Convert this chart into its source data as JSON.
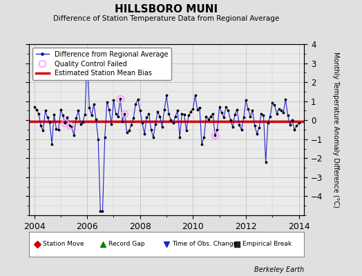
{
  "title": "HILLSBORO MUNI",
  "subtitle": "Difference of Station Temperature Data from Regional Average",
  "ylabel": "Monthly Temperature Anomaly Difference (°C)",
  "xlim": [
    2003.8,
    2014.2
  ],
  "ylim": [
    -5,
    4
  ],
  "yticks": [
    -4,
    -3,
    -2,
    -1,
    0,
    1,
    2,
    3,
    4
  ],
  "xticks": [
    2004,
    2006,
    2008,
    2010,
    2012,
    2014
  ],
  "bias_value": -0.05,
  "bg_color": "#e0e0e0",
  "plot_bg_color": "#ebebeb",
  "line_color": "#2222cc",
  "bias_color": "#dd0000",
  "qc_color": "#ff99ff",
  "time_series": [
    [
      2004.0,
      0.7
    ],
    [
      2004.083,
      0.55
    ],
    [
      2004.167,
      0.35
    ],
    [
      2004.25,
      -0.3
    ],
    [
      2004.333,
      -0.55
    ],
    [
      2004.417,
      0.5
    ],
    [
      2004.5,
      0.15
    ],
    [
      2004.583,
      -0.1
    ],
    [
      2004.667,
      -1.25
    ],
    [
      2004.75,
      0.3
    ],
    [
      2004.833,
      -0.45
    ],
    [
      2004.917,
      -0.5
    ],
    [
      2005.0,
      0.55
    ],
    [
      2005.083,
      0.25
    ],
    [
      2005.167,
      -0.15
    ],
    [
      2005.25,
      0.15
    ],
    [
      2005.333,
      -0.3
    ],
    [
      2005.417,
      -0.35
    ],
    [
      2005.5,
      -0.8
    ],
    [
      2005.583,
      0.1
    ],
    [
      2005.667,
      0.5
    ],
    [
      2005.75,
      -0.2
    ],
    [
      2005.833,
      -0.1
    ],
    [
      2005.917,
      0.3
    ],
    [
      2006.0,
      3.5
    ],
    [
      2006.083,
      0.65
    ],
    [
      2006.167,
      0.25
    ],
    [
      2006.25,
      0.85
    ],
    [
      2006.333,
      0.05
    ],
    [
      2006.417,
      -1.0
    ],
    [
      2006.5,
      -4.8
    ],
    [
      2006.583,
      -4.8
    ],
    [
      2006.667,
      -0.9
    ],
    [
      2006.75,
      0.95
    ],
    [
      2006.833,
      0.55
    ],
    [
      2006.917,
      -0.2
    ],
    [
      2007.0,
      1.05
    ],
    [
      2007.083,
      0.35
    ],
    [
      2007.167,
      0.2
    ],
    [
      2007.25,
      1.15
    ],
    [
      2007.333,
      -0.05
    ],
    [
      2007.417,
      0.35
    ],
    [
      2007.5,
      -0.65
    ],
    [
      2007.583,
      -0.55
    ],
    [
      2007.667,
      -0.25
    ],
    [
      2007.75,
      0.1
    ],
    [
      2007.833,
      0.85
    ],
    [
      2007.917,
      1.1
    ],
    [
      2008.0,
      0.5
    ],
    [
      2008.083,
      -0.15
    ],
    [
      2008.167,
      -0.7
    ],
    [
      2008.25,
      0.15
    ],
    [
      2008.333,
      0.35
    ],
    [
      2008.417,
      -0.5
    ],
    [
      2008.5,
      -0.9
    ],
    [
      2008.583,
      -0.2
    ],
    [
      2008.667,
      0.45
    ],
    [
      2008.75,
      0.2
    ],
    [
      2008.833,
      -0.35
    ],
    [
      2008.917,
      0.55
    ],
    [
      2009.0,
      1.3
    ],
    [
      2009.083,
      0.35
    ],
    [
      2009.167,
      0.0
    ],
    [
      2009.25,
      -0.15
    ],
    [
      2009.333,
      0.2
    ],
    [
      2009.417,
      0.5
    ],
    [
      2009.5,
      -0.9
    ],
    [
      2009.583,
      0.35
    ],
    [
      2009.667,
      0.3
    ],
    [
      2009.75,
      -0.55
    ],
    [
      2009.833,
      0.25
    ],
    [
      2009.917,
      0.45
    ],
    [
      2010.0,
      0.6
    ],
    [
      2010.083,
      1.3
    ],
    [
      2010.167,
      0.55
    ],
    [
      2010.25,
      0.65
    ],
    [
      2010.333,
      -1.25
    ],
    [
      2010.417,
      -0.9
    ],
    [
      2010.5,
      0.2
    ],
    [
      2010.583,
      0.05
    ],
    [
      2010.667,
      0.2
    ],
    [
      2010.75,
      0.35
    ],
    [
      2010.833,
      -0.8
    ],
    [
      2010.917,
      -0.5
    ],
    [
      2011.0,
      0.7
    ],
    [
      2011.083,
      0.4
    ],
    [
      2011.167,
      0.15
    ],
    [
      2011.25,
      0.7
    ],
    [
      2011.333,
      0.5
    ],
    [
      2011.417,
      0.0
    ],
    [
      2011.5,
      -0.35
    ],
    [
      2011.583,
      0.3
    ],
    [
      2011.667,
      0.55
    ],
    [
      2011.75,
      -0.25
    ],
    [
      2011.833,
      -0.5
    ],
    [
      2011.917,
      0.15
    ],
    [
      2012.0,
      1.05
    ],
    [
      2012.083,
      0.6
    ],
    [
      2012.167,
      0.2
    ],
    [
      2012.25,
      0.5
    ],
    [
      2012.333,
      -0.3
    ],
    [
      2012.417,
      -0.7
    ],
    [
      2012.5,
      -0.4
    ],
    [
      2012.583,
      0.35
    ],
    [
      2012.667,
      0.25
    ],
    [
      2012.75,
      -2.2
    ],
    [
      2012.833,
      -0.15
    ],
    [
      2012.917,
      0.2
    ],
    [
      2013.0,
      0.9
    ],
    [
      2013.083,
      0.8
    ],
    [
      2013.167,
      0.35
    ],
    [
      2013.25,
      0.6
    ],
    [
      2013.333,
      0.5
    ],
    [
      2013.417,
      0.4
    ],
    [
      2013.5,
      1.1
    ],
    [
      2013.583,
      0.25
    ],
    [
      2013.667,
      -0.25
    ],
    [
      2013.75,
      0.0
    ],
    [
      2013.833,
      -0.5
    ],
    [
      2013.917,
      -0.3
    ],
    [
      2014.0,
      -0.15
    ]
  ],
  "qc_failed": [
    [
      2005.167,
      -0.15
    ],
    [
      2005.333,
      -0.3
    ],
    [
      2007.25,
      1.15
    ],
    [
      2007.417,
      0.35
    ],
    [
      2010.833,
      -0.8
    ]
  ],
  "bottom_legend": [
    {
      "label": "Station Move",
      "marker": "D",
      "color": "#cc0000"
    },
    {
      "label": "Record Gap",
      "marker": "^",
      "color": "#008800"
    },
    {
      "label": "Time of Obs. Change",
      "marker": "v",
      "color": "#2222cc"
    },
    {
      "label": "Empirical Break",
      "marker": "s",
      "color": "#222222"
    }
  ]
}
